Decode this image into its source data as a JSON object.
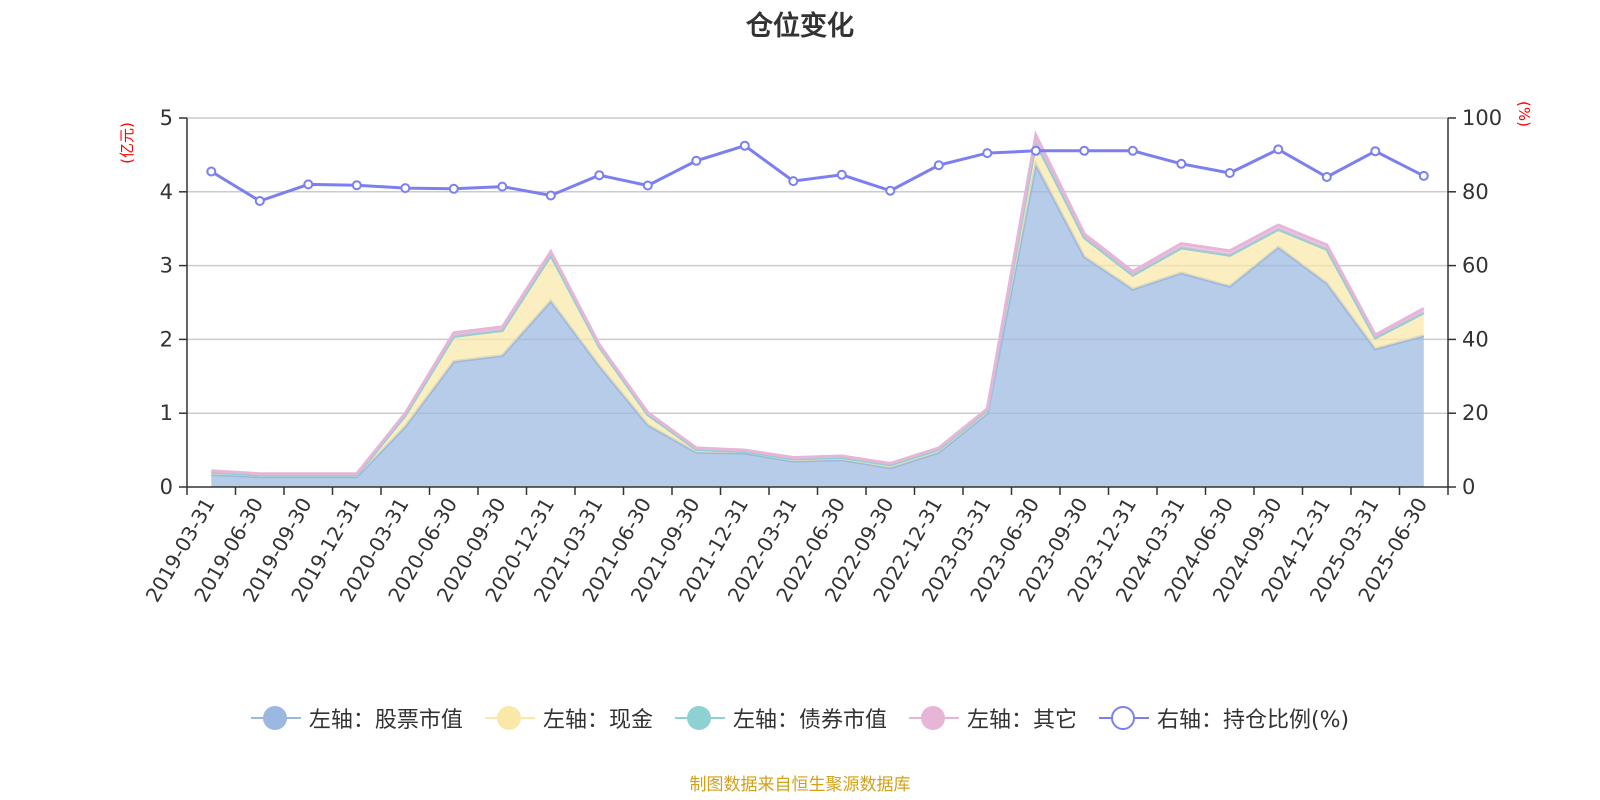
{
  "source_note": "制图数据来自恒生聚源数据库",
  "chart_data": {
    "type": "area",
    "title": "仓位变化",
    "y_left_unit": "(亿元)",
    "y_right_unit": "(%)",
    "y_left_range": [
      0,
      5
    ],
    "y_left_ticks": [
      "0",
      "1",
      "2",
      "3",
      "4",
      "5"
    ],
    "y_right_range": [
      0,
      100
    ],
    "y_right_ticks": [
      "0",
      "20",
      "40",
      "60",
      "80",
      "100"
    ],
    "grid": true,
    "legend_position": "bottom",
    "categories": [
      "2019-03-31",
      "2019-06-30",
      "2019-09-30",
      "2019-12-31",
      "2020-03-31",
      "2020-06-30",
      "2020-09-30",
      "2020-12-31",
      "2021-03-31",
      "2021-06-30",
      "2021-09-30",
      "2021-12-31",
      "2022-03-31",
      "2022-06-30",
      "2022-09-30",
      "2022-12-31",
      "2023-03-31",
      "2023-06-30",
      "2023-09-30",
      "2023-12-31",
      "2024-03-31",
      "2024-06-30",
      "2024-09-30",
      "2024-12-31",
      "2025-03-31",
      "2025-06-30"
    ],
    "series": [
      {
        "name": "左轴：股票市值",
        "axis": "left",
        "stacked": true,
        "color": "#9bb8e0",
        "values": [
          0.17,
          0.14,
          0.14,
          0.14,
          0.82,
          1.7,
          1.78,
          2.52,
          1.64,
          0.84,
          0.47,
          0.46,
          0.35,
          0.37,
          0.26,
          0.47,
          1.0,
          4.37,
          3.12,
          2.68,
          2.9,
          2.72,
          3.25,
          2.76,
          1.87,
          2.05
        ]
      },
      {
        "name": "左轴：现金",
        "axis": "left",
        "stacked": true,
        "color": "#fae8a8",
        "values": [
          0.03,
          0.02,
          0.02,
          0.02,
          0.15,
          0.34,
          0.34,
          0.62,
          0.26,
          0.14,
          0.04,
          0.02,
          0.03,
          0.03,
          0.04,
          0.04,
          0.04,
          0.3,
          0.26,
          0.19,
          0.34,
          0.42,
          0.24,
          0.46,
          0.15,
          0.31
        ]
      },
      {
        "name": "左轴：债券市值",
        "axis": "left",
        "stacked": true,
        "color": "#8ed1d2",
        "values": [
          0,
          0,
          0,
          0,
          0,
          0,
          0,
          0,
          0,
          0,
          0,
          0,
          0,
          0,
          0,
          0,
          0,
          0,
          0,
          0,
          0,
          0,
          0,
          0,
          0,
          0
        ]
      },
      {
        "name": "左轴：其它",
        "axis": "left",
        "stacked": true,
        "color": "#e6b5d8",
        "values": [
          0.02,
          0.02,
          0.02,
          0.02,
          0.03,
          0.05,
          0.05,
          0.05,
          0.03,
          0.03,
          0.02,
          0.02,
          0.02,
          0.02,
          0.02,
          0.02,
          0.02,
          0.1,
          0.05,
          0.05,
          0.06,
          0.06,
          0.06,
          0.06,
          0.04,
          0.06
        ]
      },
      {
        "name": "右轴：持仓比例(%)",
        "axis": "right",
        "color": "#7b7ff0",
        "values": [
          85.5,
          77.5,
          82.0,
          81.8,
          81.0,
          80.8,
          81.4,
          79.0,
          84.5,
          81.7,
          88.4,
          92.5,
          82.9,
          84.6,
          80.3,
          87.2,
          90.5,
          91.1,
          91.1,
          91.1,
          87.6,
          85.1,
          91.5,
          84.0,
          91.0,
          84.3
        ]
      }
    ]
  }
}
